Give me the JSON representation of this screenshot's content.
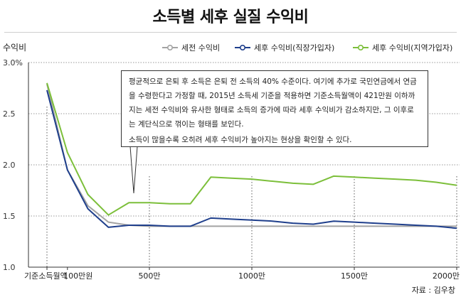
{
  "page": {
    "title": "소득별 세후 실질 수익비",
    "source": "자료 : 김우창"
  },
  "annotation": {
    "paragraph1": "평균적으로 은퇴 후 소득은 은퇴 전 소득의 40% 수준이다. 여기에 추가로 국민연금에서 연금을 수령한다고 가정할 때, 2015년 소득세 기준을 적용하면 기준소득월액이 421만원 이하까지는 세전 수익비와 유사한 형태로 소득의 증가에 따라 세후 수익비가 감소하지만, 그 이후로는 계단식으로 꺾이는 형태를 보인다.",
    "paragraph2": "소득이 많을수록 오히려 세후 수익비가 높아지는 현상을 확인할 수 있다."
  },
  "colors": {
    "series_pretax": "#a3a3a3",
    "series_workplace": "#1f3f8c",
    "series_regional": "#7cbf3a",
    "axis": "#333333",
    "grid": "#333333"
  },
  "chart_data": {
    "type": "line",
    "title": "소득별 세후 실질 수익비",
    "ylabel": "수익비",
    "xlabel": "기준소득월액",
    "xlim": [
      0,
      2000
    ],
    "ylim": [
      1.0,
      3.0
    ],
    "x_unit_label": "만",
    "y_ticks": [
      "1.0",
      "1.5",
      "2.0",
      "2.5",
      "3.0%"
    ],
    "x_tick_labels": [
      {
        "x": 0,
        "label": "기준소득월액"
      },
      {
        "x": 100,
        "label": "100만원"
      },
      {
        "x": 500,
        "label": "500만"
      },
      {
        "x": 1000,
        "label": "1000만"
      },
      {
        "x": 1500,
        "label": "1500만"
      },
      {
        "x": 2000,
        "label": "2000만"
      }
    ],
    "dashed_gridlines_x": [
      500,
      1000,
      1500,
      2000
    ],
    "legend_position": "top-right",
    "x": [
      0,
      100,
      200,
      300,
      400,
      500,
      600,
      700,
      800,
      900,
      1000,
      1100,
      1200,
      1300,
      1400,
      1500,
      1600,
      1700,
      1800,
      1900,
      2000
    ],
    "series": [
      {
        "name": "세전 수익비",
        "color_key": "series_pretax",
        "values": [
          2.79,
          1.95,
          1.6,
          1.44,
          1.41,
          1.4,
          1.4,
          1.4,
          1.4,
          1.4,
          1.4,
          1.4,
          1.4,
          1.4,
          1.4,
          1.4,
          1.4,
          1.4,
          1.4,
          1.4,
          1.4
        ]
      },
      {
        "name": "세후 수익비(직장가입자)",
        "color_key": "series_workplace",
        "values": [
          2.73,
          1.95,
          1.57,
          1.39,
          1.41,
          1.41,
          1.4,
          1.4,
          1.48,
          1.47,
          1.46,
          1.45,
          1.43,
          1.42,
          1.45,
          1.44,
          1.43,
          1.42,
          1.41,
          1.4,
          1.38
        ]
      },
      {
        "name": "세후 수익비(지역가입자)",
        "color_key": "series_regional",
        "values": [
          2.8,
          2.12,
          1.71,
          1.51,
          1.63,
          1.63,
          1.62,
          1.62,
          1.88,
          1.87,
          1.86,
          1.84,
          1.82,
          1.81,
          1.89,
          1.88,
          1.87,
          1.86,
          1.85,
          1.83,
          1.8
        ]
      }
    ]
  }
}
